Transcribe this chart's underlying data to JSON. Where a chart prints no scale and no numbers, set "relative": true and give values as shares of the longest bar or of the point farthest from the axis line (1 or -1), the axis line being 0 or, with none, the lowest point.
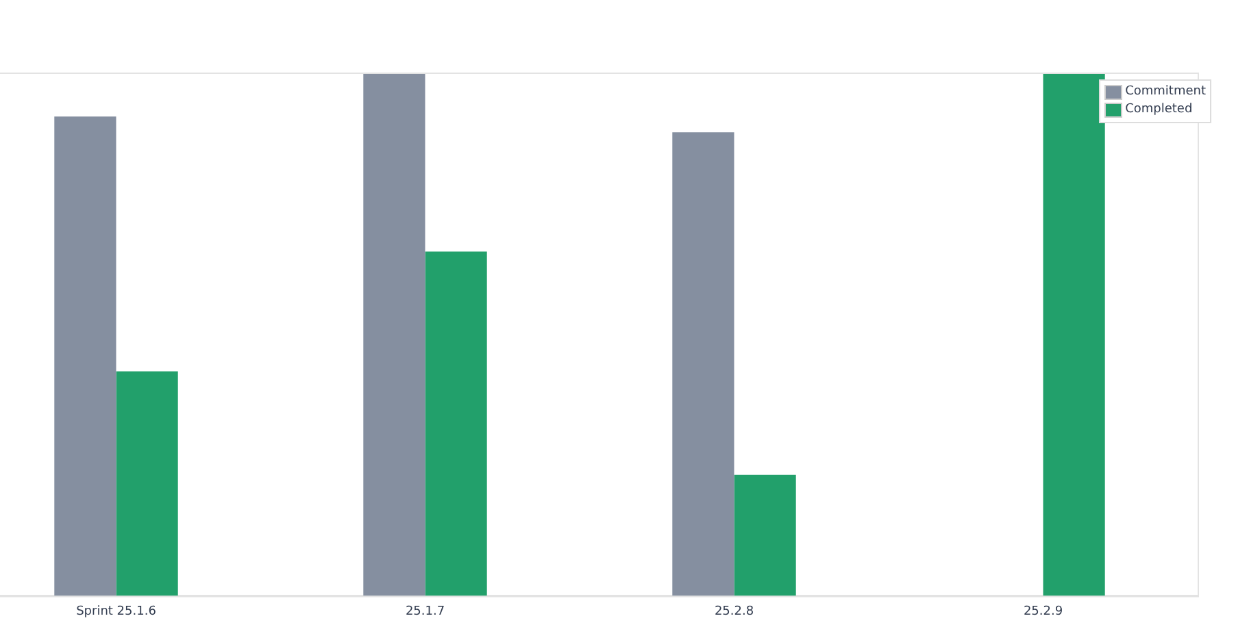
{
  "chart_data": {
    "type": "bar",
    "relative": true,
    "categories": [
      "Sprint 25.1.6",
      "25.1.7",
      "25.2.8",
      "25.2.9"
    ],
    "series": [
      {
        "name": "Commitment",
        "color": "#858fa0",
        "values": [
          0.916,
          1,
          0.886,
          null
        ]
      },
      {
        "name": "Completed",
        "color": "#22a06b",
        "values": [
          0.429,
          0.658,
          0.231,
          1
        ]
      }
    ],
    "legend": "top right",
    "grid": false
  }
}
